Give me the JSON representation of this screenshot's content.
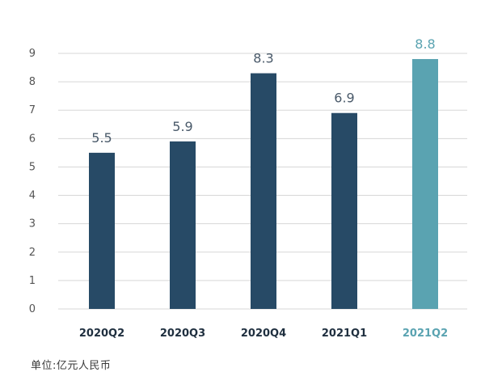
{
  "chart_data": {
    "type": "bar",
    "categories": [
      "2020Q2",
      "2020Q3",
      "2020Q4",
      "2021Q1",
      "2021Q2"
    ],
    "values": [
      5.5,
      5.9,
      8.3,
      6.9,
      8.8
    ],
    "value_labels": [
      "5.5",
      "5.9",
      "8.3",
      "6.9",
      "8.8"
    ],
    "title": "",
    "xlabel": "",
    "ylabel": "",
    "ylim": [
      0,
      9
    ],
    "yticks": [
      "0",
      "1",
      "2",
      "3",
      "4",
      "5",
      "6",
      "7",
      "8",
      "9"
    ],
    "grid": true,
    "highlight_index": 4,
    "colors": {
      "bar": "#274a66",
      "highlight": "#5aa3b1",
      "value_label": "#4a5a6a",
      "tick_label": "#555555",
      "category_label": "#1f2f3f",
      "grid": "#d7d7d7"
    }
  },
  "footnote": "单位:亿元人民币"
}
